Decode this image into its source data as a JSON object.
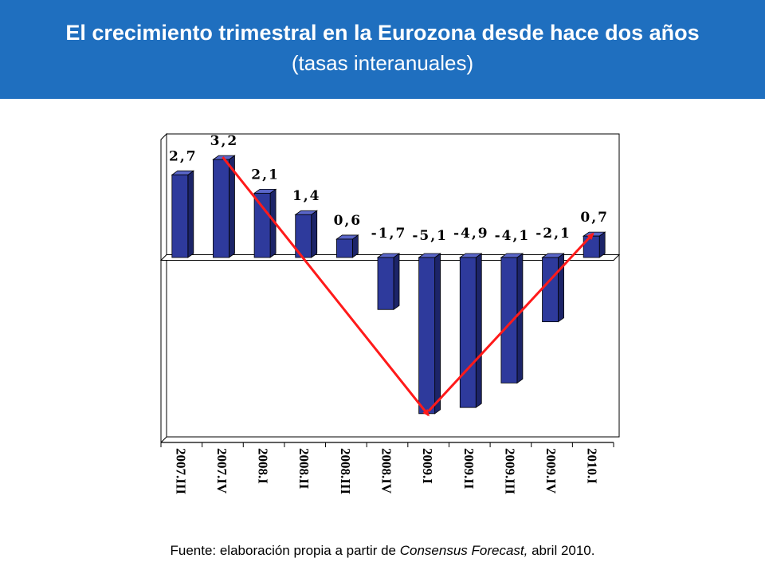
{
  "header": {
    "title": "El crecimiento trimestral en la Eurozona desde hace dos años",
    "subtitle": "(tasas interanuales)"
  },
  "source": {
    "prefix": "Fuente: elaboración propia a partir de ",
    "italic": "Consensus Forecast,",
    "suffix": " abril 2010."
  },
  "colors": {
    "header_bg": "#1f6fbf",
    "bar_front": "#2e3a9c",
    "bar_side": "#1c2468",
    "bar_top": "#5a66c8",
    "trend": "#ff1a1a"
  },
  "chart_data": {
    "type": "bar",
    "categories": [
      "2007.III",
      "2007.IV",
      "2008.I",
      "2008.II",
      "2008.III",
      "2008.IV",
      "2009.I",
      "2009.II",
      "2009.III",
      "2009.IV",
      "2010.I"
    ],
    "values": [
      2.7,
      3.2,
      2.1,
      1.4,
      0.6,
      -1.7,
      -5.1,
      -4.9,
      -4.1,
      -2.1,
      0.7
    ],
    "value_labels": [
      "2,7",
      "3,2",
      "2,1",
      "1,4",
      "0,6",
      "-1,7",
      "-5,1",
      "-4,9",
      "-4,1",
      "-2,1",
      "0,7"
    ],
    "ylim": [
      -6,
      4
    ],
    "grid": false,
    "legend": "none",
    "trend_arrows": [
      {
        "from": "2007.IV",
        "to": "2009.I"
      },
      {
        "from": "2009.I",
        "to": "2010.I"
      }
    ]
  }
}
